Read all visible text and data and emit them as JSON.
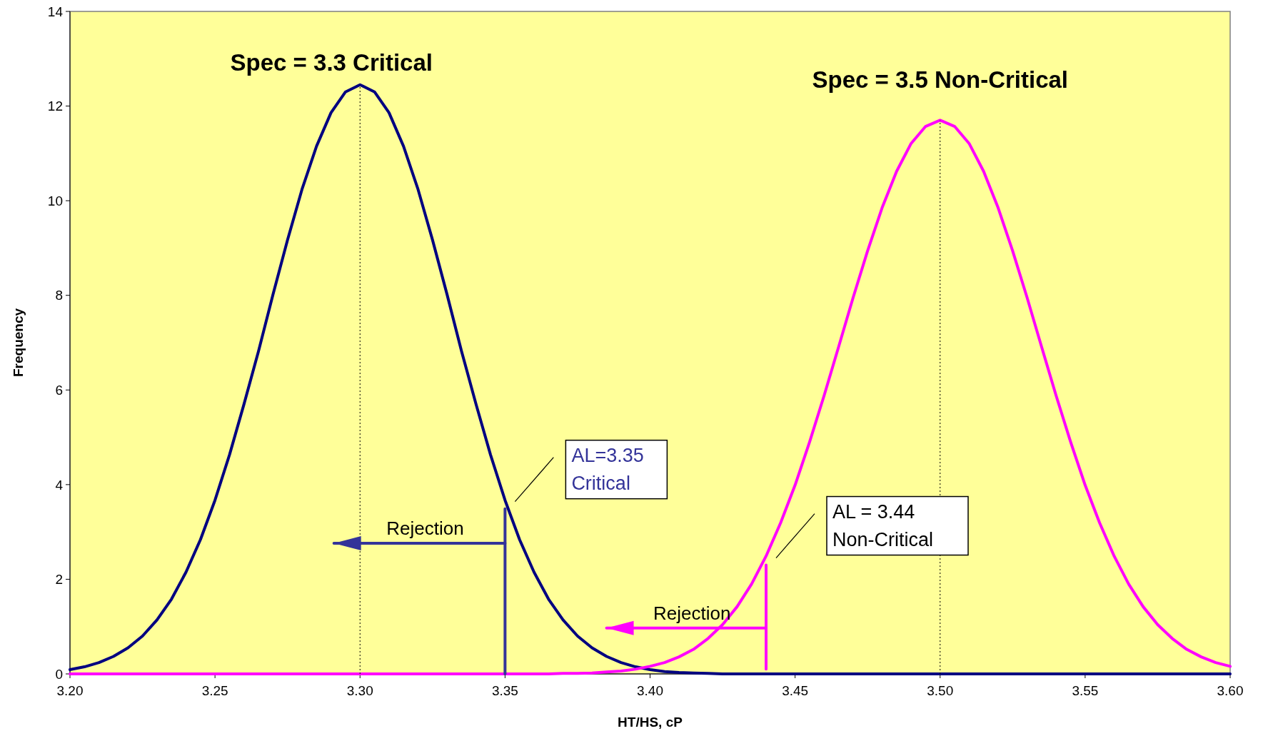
{
  "chart_data": {
    "type": "line",
    "xlabel": "HT/HS, cP",
    "ylabel": "Frequency",
    "x": [
      3.2,
      3.205,
      3.21,
      3.215,
      3.22,
      3.225,
      3.23,
      3.235,
      3.24,
      3.245,
      3.25,
      3.255,
      3.26,
      3.265,
      3.27,
      3.275,
      3.28,
      3.285,
      3.29,
      3.295,
      3.3,
      3.305,
      3.31,
      3.315,
      3.32,
      3.325,
      3.33,
      3.335,
      3.34,
      3.345,
      3.35,
      3.355,
      3.36,
      3.365,
      3.37,
      3.375,
      3.38,
      3.385,
      3.39,
      3.395,
      3.4,
      3.405,
      3.41,
      3.415,
      3.42,
      3.425,
      3.43,
      3.435,
      3.44,
      3.445,
      3.45,
      3.455,
      3.46,
      3.465,
      3.47,
      3.475,
      3.48,
      3.485,
      3.49,
      3.495,
      3.5,
      3.505,
      3.51,
      3.515,
      3.52,
      3.525,
      3.53,
      3.535,
      3.54,
      3.545,
      3.55,
      3.555,
      3.56,
      3.565,
      3.57,
      3.575,
      3.58,
      3.585,
      3.59,
      3.595,
      3.6
    ],
    "series": [
      {
        "color": "#000080",
        "values": [
          0.09,
          0.15,
          0.24,
          0.37,
          0.55,
          0.8,
          1.14,
          1.58,
          2.15,
          2.84,
          3.67,
          4.63,
          5.7,
          6.82,
          8.02,
          9.17,
          10.24,
          11.15,
          11.86,
          12.3,
          12.45,
          12.3,
          11.86,
          11.15,
          10.24,
          9.17,
          8.02,
          6.82,
          5.7,
          4.63,
          3.67,
          2.84,
          2.15,
          1.58,
          1.14,
          0.8,
          0.55,
          0.37,
          0.24,
          0.15,
          0.09,
          0.05,
          0.03,
          0.02,
          0.01,
          0,
          0,
          0,
          0,
          0,
          0,
          0,
          0,
          0,
          0,
          0,
          0,
          0,
          0,
          0,
          0,
          0,
          0,
          0,
          0,
          0,
          0,
          0,
          0,
          0,
          0,
          0,
          0,
          0,
          0,
          0,
          0,
          0,
          0,
          0,
          0
        ]
      },
      {
        "color": "#ff00ff",
        "values": [
          0,
          0,
          0,
          0,
          0,
          0,
          0,
          0,
          0,
          0,
          0,
          0,
          0,
          0,
          0,
          0,
          0,
          0,
          0,
          0,
          0,
          0,
          0,
          0,
          0,
          0,
          0,
          0,
          0,
          0,
          0,
          0,
          0,
          0,
          0.01,
          0.01,
          0.02,
          0.04,
          0.06,
          0.1,
          0.16,
          0.24,
          0.36,
          0.52,
          0.75,
          1.04,
          1.42,
          1.9,
          2.49,
          3.19,
          3.99,
          4.9,
          5.88,
          6.91,
          7.95,
          8.94,
          9.85,
          10.62,
          11.21,
          11.57,
          11.7,
          11.57,
          11.21,
          10.62,
          9.85,
          8.94,
          7.95,
          6.91,
          5.88,
          4.9,
          3.99,
          3.19,
          2.49,
          1.9,
          1.42,
          1.04,
          0.75,
          0.52,
          0.36,
          0.24,
          0.16
        ]
      },
      {
        "color": "#000000",
        "line_style": "dotted",
        "x": [
          3.3,
          3.3
        ],
        "values": [
          0,
          12.45
        ]
      },
      {
        "color": "#000000",
        "line_style": "dotted",
        "x": [
          3.5,
          3.5
        ],
        "values": [
          0,
          11.7
        ]
      },
      {
        "color": "#333399",
        "x": [
          3.35,
          3.35
        ],
        "values": [
          0,
          3.49
        ]
      },
      {
        "color": "#ff00ff",
        "x": [
          3.44,
          3.44
        ],
        "values": [
          0.1,
          2.3
        ]
      },
      {
        "color": "#333399",
        "x": [
          3.35,
          3.291
        ],
        "values": [
          2.76,
          2.76
        ]
      },
      {
        "color": "#ff00ff",
        "x": [
          3.44,
          3.385
        ],
        "values": [
          0.97,
          0.97
        ]
      }
    ],
    "annotations": [
      "Spec = 3.3 Critical",
      "Spec = 3.5 Non-Critical",
      "Rejection",
      "Rejection",
      "AL=3.35\nCritical",
      "AL = 3.44\nNon-Critical"
    ],
    "xlim": [
      3.2,
      3.6
    ],
    "xticks": [
      {
        "value": 3.2,
        "label": "3.20"
      },
      {
        "value": 3.25,
        "label": "3.25"
      },
      {
        "value": 3.3,
        "label": "3.30"
      },
      {
        "value": 3.35,
        "label": "3.35"
      },
      {
        "value": 3.4,
        "label": "3.40"
      },
      {
        "value": 3.45,
        "label": "3.45"
      },
      {
        "value": 3.5,
        "label": "3.50"
      },
      {
        "value": 3.55,
        "label": "3.55"
      },
      {
        "value": 3.6,
        "label": "3.60"
      }
    ],
    "ylim": [
      0,
      14
    ],
    "yticks": [
      0,
      2,
      4,
      6,
      8,
      10,
      12,
      14
    ],
    "grid": false
  }
}
